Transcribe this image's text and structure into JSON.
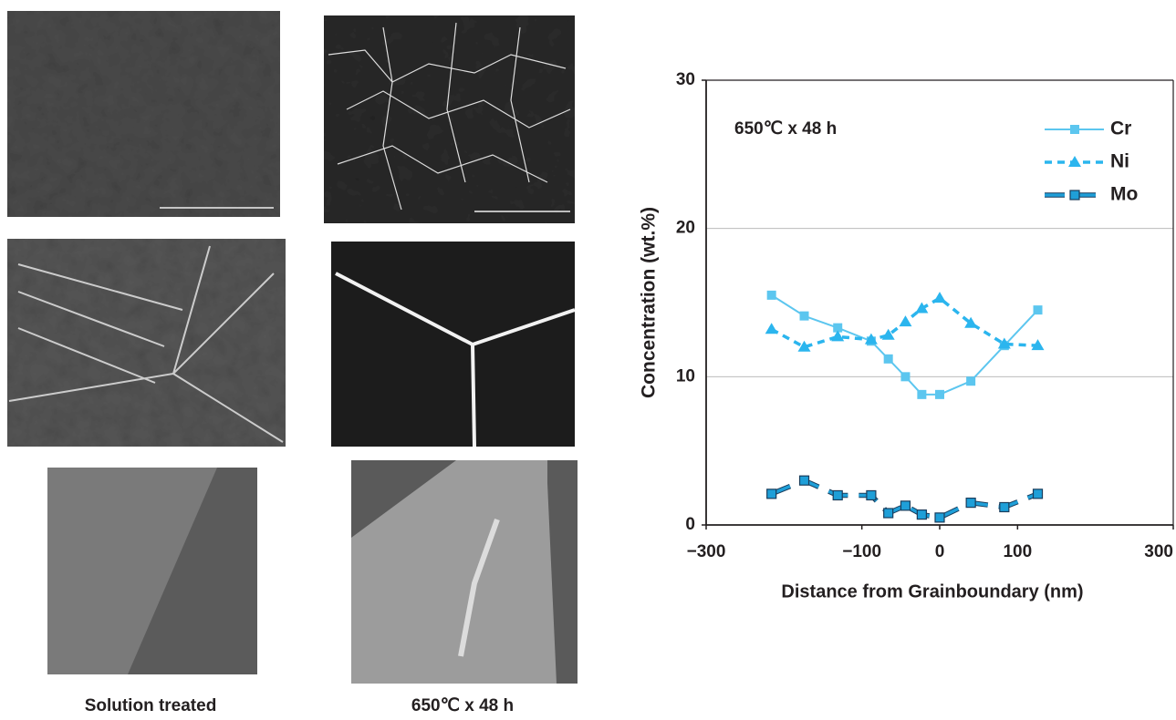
{
  "captions": [
    "Solution treated",
    "650℃ x 48 h"
  ],
  "chart_data": {
    "type": "line",
    "annotation": "650℃ x 48 h",
    "x_label": "Distance from Grainboundary (nm)",
    "y_label": "Concentration  (wt.%)",
    "xlim": [
      -300,
      300
    ],
    "xticks": [
      {
        "value": -300,
        "label": "−300"
      },
      {
        "value": -100,
        "label": "−100"
      },
      0,
      100,
      300
    ],
    "ylim": [
      0,
      30
    ],
    "yticks": [
      0,
      10,
      20,
      30
    ],
    "grid": true,
    "legend": "upper right",
    "x": [
      -216,
      -174,
      -131,
      -88,
      -66,
      -44,
      -23,
      0,
      40,
      83,
      126
    ],
    "series": [
      {
        "name": "Cr",
        "color": "#5cc6ef",
        "marker": "square",
        "dash": false,
        "values": [
          15.5,
          14.1,
          13.3,
          12.4,
          11.2,
          10.0,
          8.8,
          8.8,
          9.7,
          12.1,
          14.5
        ]
      },
      {
        "name": "Ni",
        "color": "#2bb5ee",
        "marker": "triangle",
        "dash": true,
        "values": [
          13.2,
          12.0,
          12.7,
          12.5,
          12.8,
          13.7,
          14.6,
          15.3,
          13.6,
          12.2,
          12.1
        ]
      },
      {
        "name": "Mo",
        "color": "#1f9fd8",
        "marker": "square-outlined",
        "dash": true,
        "values": [
          2.1,
          3.0,
          2.0,
          2.0,
          0.8,
          1.3,
          0.7,
          0.5,
          1.5,
          1.2,
          2.1
        ]
      }
    ]
  }
}
